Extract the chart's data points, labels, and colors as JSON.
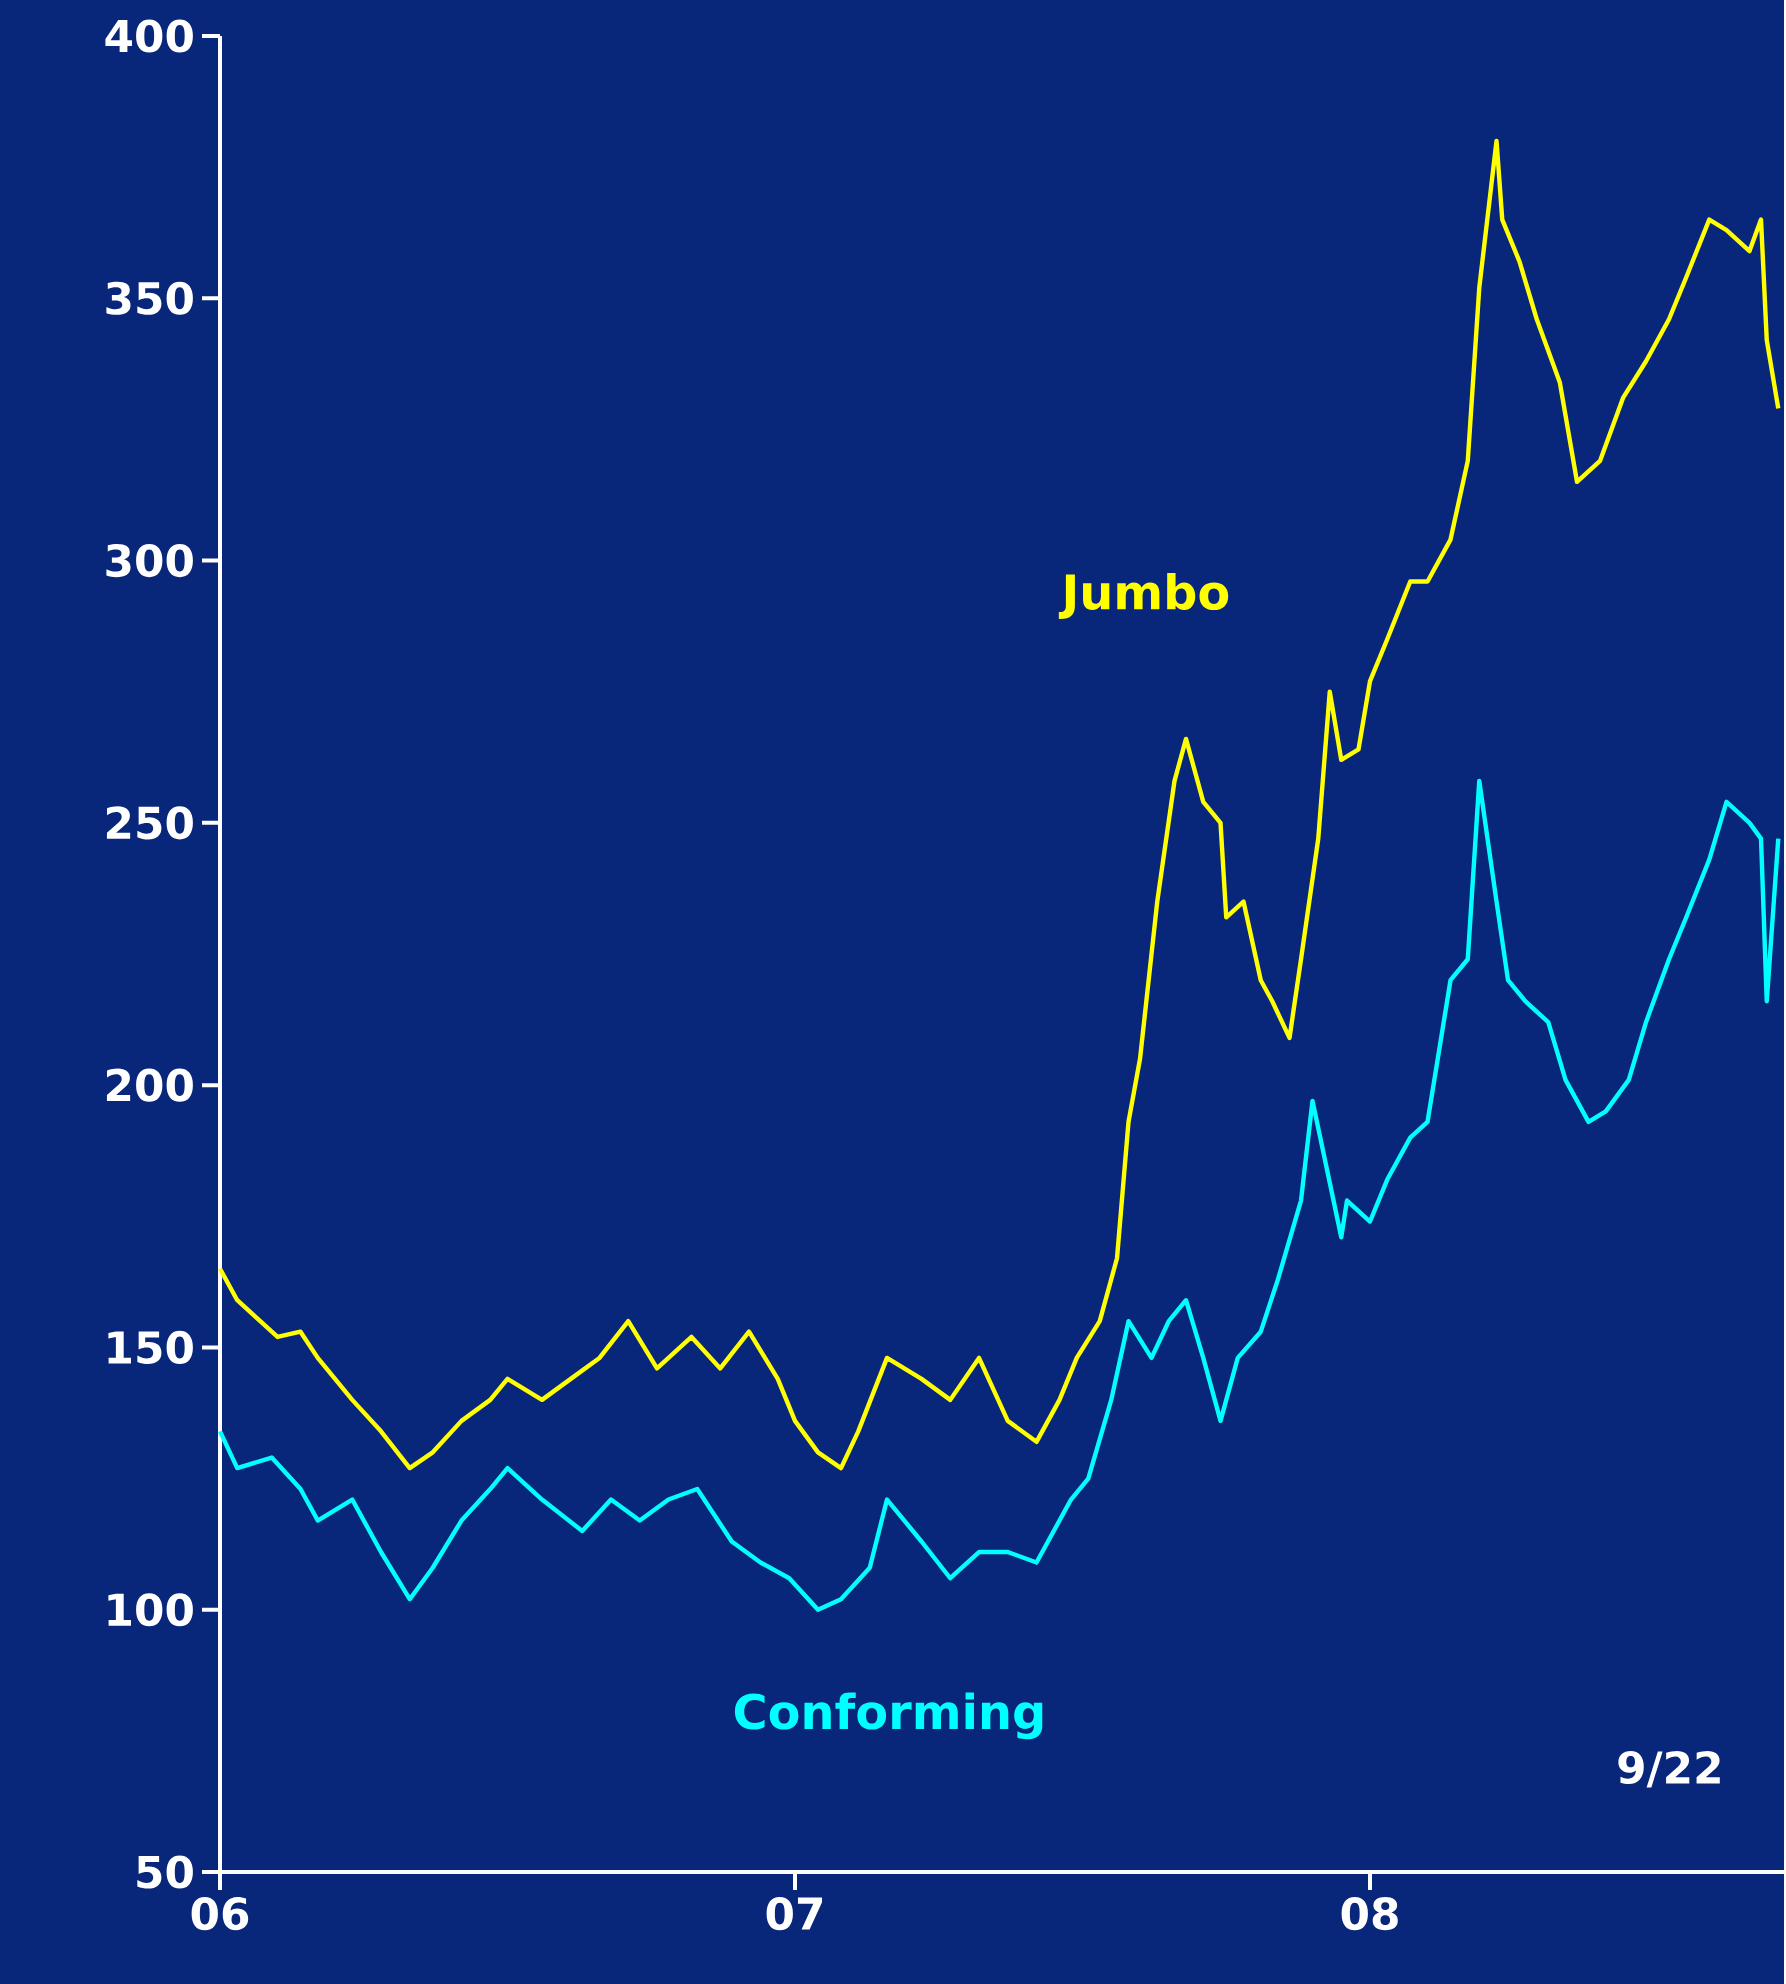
{
  "chart_data": {
    "type": "line",
    "xlim": [
      2006,
      2008.72
    ],
    "ylim": [
      50,
      400
    ],
    "xticks": [
      {
        "value": 2006,
        "label": "06"
      },
      {
        "value": 2007,
        "label": "07"
      },
      {
        "value": 2008,
        "label": "08"
      }
    ],
    "yticks": [
      50,
      100,
      150,
      200,
      250,
      300,
      350,
      400
    ],
    "annotations": [
      "9/22"
    ],
    "series": [
      {
        "name": "Jumbo",
        "color": "#ffff00",
        "x": [
          2006,
          2006.03,
          2006.07,
          2006.1,
          2006.14,
          2006.17,
          2006.23,
          2006.28,
          2006.33,
          2006.37,
          2006.42,
          2006.47,
          2006.5,
          2006.56,
          2006.61,
          2006.66,
          2006.71,
          2006.76,
          2006.82,
          2006.87,
          2006.92,
          2006.97,
          2007.0,
          2007.04,
          2007.08,
          2007.11,
          2007.16,
          2007.22,
          2007.27,
          2007.32,
          2007.37,
          2007.42,
          2007.46,
          2007.49,
          2007.53,
          2007.56,
          2007.58,
          2007.6,
          2007.63,
          2007.66,
          2007.68,
          2007.71,
          2007.74,
          2007.75,
          2007.78,
          2007.81,
          2007.83,
          2007.86,
          2007.88,
          2007.91,
          2007.93,
          2007.95,
          2007.98,
          2008.0,
          2008.03,
          2008.07,
          2008.1,
          2008.14,
          2008.17,
          2008.19,
          2008.22,
          2008.23,
          2008.26,
          2008.29,
          2008.33,
          2008.36,
          2008.4,
          2008.44,
          2008.48,
          2008.52,
          2008.55,
          2008.59,
          2008.62,
          2008.66,
          2008.68,
          2008.69,
          2008.71
        ],
        "values": [
          165,
          159,
          155,
          152,
          153,
          148,
          140,
          134,
          127,
          130,
          136,
          140,
          144,
          140,
          144,
          148,
          155,
          146,
          152,
          146,
          153,
          144,
          136,
          130,
          127,
          134,
          148,
          144,
          140,
          148,
          136,
          132,
          140,
          148,
          155,
          167,
          193,
          205,
          235,
          258,
          266,
          254,
          250,
          232,
          235,
          220,
          216,
          209,
          224,
          247,
          275,
          262,
          264,
          277,
          285,
          296,
          296,
          304,
          319,
          352,
          380,
          365,
          357,
          346,
          334,
          315,
          319,
          331,
          338,
          346,
          354,
          365,
          363,
          359,
          365,
          342,
          329
        ]
      },
      {
        "name": "Conforming",
        "color": "#00ffff",
        "x": [
          2006,
          2006.03,
          2006.09,
          2006.14,
          2006.17,
          2006.23,
          2006.28,
          2006.33,
          2006.37,
          2006.42,
          2006.47,
          2006.5,
          2006.56,
          2006.63,
          2006.68,
          2006.73,
          2006.78,
          2006.83,
          2006.89,
          2006.94,
          2006.99,
          2007.04,
          2007.08,
          2007.13,
          2007.16,
          2007.22,
          2007.27,
          2007.32,
          2007.37,
          2007.42,
          2007.48,
          2007.51,
          2007.55,
          2007.58,
          2007.62,
          2007.65,
          2007.68,
          2007.71,
          2007.74,
          2007.77,
          2007.81,
          2007.84,
          2007.88,
          2007.9,
          2007.95,
          2007.96,
          2008.0,
          2008.03,
          2008.07,
          2008.1,
          2008.14,
          2008.17,
          2008.19,
          2008.22,
          2008.24,
          2008.27,
          2008.31,
          2008.34,
          2008.38,
          2008.41,
          2008.45,
          2008.48,
          2008.52,
          2008.55,
          2008.59,
          2008.62,
          2008.66,
          2008.68,
          2008.69,
          2008.71
        ],
        "values": [
          134,
          127,
          129,
          123,
          117,
          121,
          111,
          102,
          108,
          117,
          123,
          127,
          121,
          115,
          121,
          117,
          121,
          123,
          113,
          109,
          106,
          100,
          102,
          108,
          121,
          113,
          106,
          111,
          111,
          109,
          121,
          125,
          140,
          155,
          148,
          155,
          159,
          148,
          136,
          148,
          153,
          163,
          178,
          197,
          171,
          178,
          174,
          182,
          190,
          193,
          220,
          224,
          258,
          235,
          220,
          216,
          212,
          201,
          193,
          195,
          201,
          212,
          224,
          232,
          243,
          254,
          250,
          247,
          216,
          247
        ]
      }
    ]
  }
}
